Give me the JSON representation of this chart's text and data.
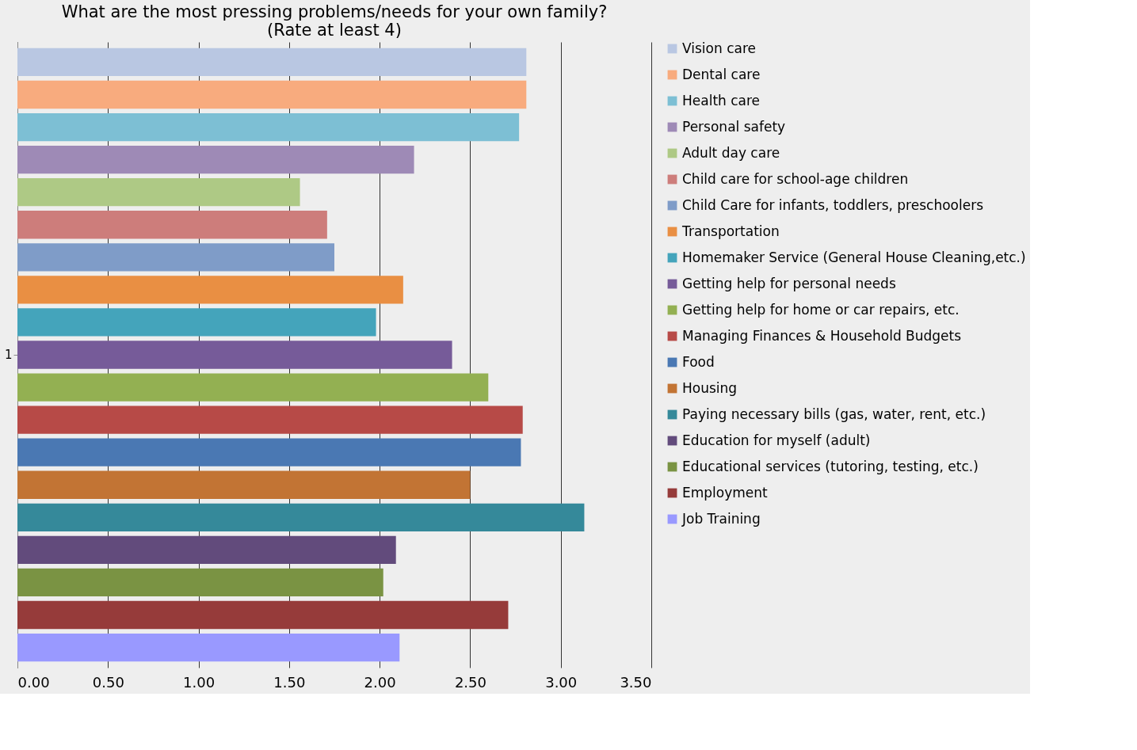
{
  "chart_data": {
    "type": "bar",
    "orientation": "horizontal",
    "title": "What are the most pressing problems/needs for your own family?\n(Rate at least 4)",
    "categories": [
      "1"
    ],
    "series": [
      {
        "name": "Vision care",
        "color": "#b9c7e2",
        "values": [
          2.81
        ]
      },
      {
        "name": "Dental care",
        "color": "#f8ab7e",
        "values": [
          2.81
        ]
      },
      {
        "name": "Health care",
        "color": "#7dbfd4",
        "values": [
          2.77
        ]
      },
      {
        "name": "Personal safety",
        "color": "#9e8ab6",
        "values": [
          2.19
        ]
      },
      {
        "name": "Adult day care",
        "color": "#aec985",
        "values": [
          1.56
        ]
      },
      {
        "name": "Child care for school-age children",
        "color": "#cd7d7b",
        "values": [
          1.71
        ]
      },
      {
        "name": "Child Care for infants, toddlers, preschoolers",
        "color": "#7f9cc8",
        "values": [
          1.75
        ]
      },
      {
        "name": "Transportation",
        "color": "#e98f43",
        "values": [
          2.13
        ]
      },
      {
        "name": "Homemaker Service (General House Cleaning,etc.)",
        "color": "#44a4bb",
        "values": [
          1.98
        ]
      },
      {
        "name": "Getting help for personal needs",
        "color": "#765b99",
        "values": [
          2.4
        ]
      },
      {
        "name": "Getting help for home or car repairs, etc.",
        "color": "#93b052",
        "values": [
          2.6
        ]
      },
      {
        "name": "Managing Finances & Household Budgets",
        "color": "#b74a47",
        "values": [
          2.79
        ]
      },
      {
        "name": "Food",
        "color": "#4a78b3",
        "values": [
          2.78
        ]
      },
      {
        "name": "Housing",
        "color": "#c27434",
        "values": [
          2.5
        ]
      },
      {
        "name": "Paying necessary bills (gas, water, rent, etc.)",
        "color": "#35899a",
        "values": [
          3.13
        ]
      },
      {
        "name": "Education for myself (adult)",
        "color": "#624b7c",
        "values": [
          2.09
        ]
      },
      {
        "name": "Educational services (tutoring, testing, etc.)",
        "color": "#7a9343",
        "values": [
          2.02
        ]
      },
      {
        "name": "Employment",
        "color": "#963b3a",
        "values": [
          2.71
        ]
      },
      {
        "name": "Job Training",
        "color": "#9999ff",
        "values": [
          2.11
        ]
      }
    ],
    "xlim": [
      0,
      3.5
    ],
    "xticks": [
      {
        "value": 0,
        "label": "0.00"
      },
      {
        "value": 0.5,
        "label": "0.50"
      },
      {
        "value": 1,
        "label": "1.00"
      },
      {
        "value": 1.5,
        "label": "1.50"
      },
      {
        "value": 2,
        "label": "2.00"
      },
      {
        "value": 2.5,
        "label": "2.50"
      },
      {
        "value": 3,
        "label": "3.00"
      },
      {
        "value": 3.5,
        "label": "3.50"
      }
    ],
    "grid": "x",
    "legend": "right"
  }
}
